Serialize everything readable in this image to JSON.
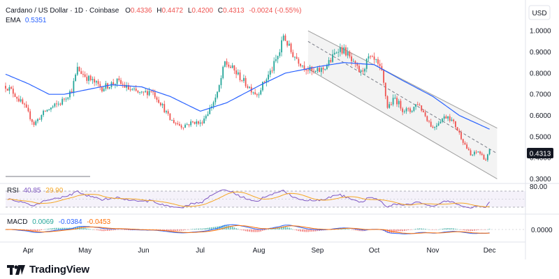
{
  "header": {
    "symbol": "Cardano / US Dollar · 1D · Coinbase",
    "open_label": "O",
    "open": "0.4336",
    "high_label": "H",
    "high": "0.4472",
    "low_label": "L",
    "low": "0.4200",
    "close_label": "C",
    "close": "0.4313",
    "change": "-0.0024 (-0.55%)",
    "ema_label": "EMA",
    "ema_value": "0.5351"
  },
  "currency_button": "USD",
  "last_price_badge": "0.4313",
  "rsi": {
    "label": "RSI",
    "value": "40.85",
    "ma": "29.90",
    "upper_label": "80.00"
  },
  "macd": {
    "label": "MACD",
    "histogram": "0.0069",
    "macd": "-0.0384",
    "signal": "-0.0453",
    "zero_label": "0.0000"
  },
  "colors": {
    "up": "#26a69a",
    "down": "#ef5350",
    "ema": "#2962ff",
    "rsi": "#7e57c2",
    "rsi_ma": "#f5a623",
    "macd_signal": "#ff6d00",
    "channel": "#9e9e9e",
    "badge": "#131722"
  },
  "branding": {
    "logo_icon": "tradingview-logo-icon",
    "name": "TradingView"
  },
  "chart_data": {
    "type": "candlestick",
    "y_axis": {
      "ticks": [
        "1.0000",
        "0.9000",
        "0.8000",
        "0.7000",
        "0.6000",
        "0.5000",
        "0.4000",
        "0.3000"
      ],
      "range": [
        0.285,
        1.06
      ]
    },
    "x_axis": {
      "ticks": [
        "Apr",
        "May",
        "Jun",
        "Jul",
        "Aug",
        "Sep",
        "Oct",
        "Nov",
        "Dec"
      ]
    },
    "price_anchors": [
      {
        "date": "2023-03-20",
        "price": 0.74
      },
      {
        "date": "2023-03-24",
        "price": 0.71
      },
      {
        "date": "2023-03-30",
        "price": 0.64
      },
      {
        "date": "2023-04-04",
        "price": 0.56
      },
      {
        "date": "2023-04-10",
        "price": 0.62
      },
      {
        "date": "2023-04-18",
        "price": 0.66
      },
      {
        "date": "2023-04-24",
        "price": 0.72
      },
      {
        "date": "2023-04-27",
        "price": 0.82
      },
      {
        "date": "2023-05-02",
        "price": 0.78
      },
      {
        "date": "2023-05-10",
        "price": 0.73
      },
      {
        "date": "2023-05-18",
        "price": 0.76
      },
      {
        "date": "2023-05-25",
        "price": 0.72
      },
      {
        "date": "2023-05-31",
        "price": 0.7
      },
      {
        "date": "2023-06-05",
        "price": 0.72
      },
      {
        "date": "2023-06-10",
        "price": 0.66
      },
      {
        "date": "2023-06-15",
        "price": 0.58
      },
      {
        "date": "2023-06-21",
        "price": 0.55
      },
      {
        "date": "2023-06-28",
        "price": 0.57
      },
      {
        "date": "2023-07-01",
        "price": 0.56
      },
      {
        "date": "2023-07-06",
        "price": 0.63
      },
      {
        "date": "2023-07-10",
        "price": 0.7
      },
      {
        "date": "2023-07-14",
        "price": 0.85
      },
      {
        "date": "2023-07-18",
        "price": 0.82
      },
      {
        "date": "2023-07-22",
        "price": 0.78
      },
      {
        "date": "2023-07-26",
        "price": 0.74
      },
      {
        "date": "2023-07-31",
        "price": 0.7
      },
      {
        "date": "2023-08-04",
        "price": 0.76
      },
      {
        "date": "2023-08-08",
        "price": 0.82
      },
      {
        "date": "2023-08-12",
        "price": 0.9
      },
      {
        "date": "2023-08-14",
        "price": 0.98
      },
      {
        "date": "2023-08-18",
        "price": 0.9
      },
      {
        "date": "2023-08-24",
        "price": 0.84
      },
      {
        "date": "2023-08-30",
        "price": 0.8
      },
      {
        "date": "2023-09-04",
        "price": 0.82
      },
      {
        "date": "2023-09-08",
        "price": 0.86
      },
      {
        "date": "2023-09-12",
        "price": 0.92
      },
      {
        "date": "2023-09-16",
        "price": 0.9
      },
      {
        "date": "2023-09-20",
        "price": 0.84
      },
      {
        "date": "2023-09-24",
        "price": 0.8
      },
      {
        "date": "2023-09-28",
        "price": 0.87
      },
      {
        "date": "2023-10-02",
        "price": 0.85
      },
      {
        "date": "2023-10-05",
        "price": 0.8
      },
      {
        "date": "2023-10-08",
        "price": 0.64
      },
      {
        "date": "2023-10-12",
        "price": 0.68
      },
      {
        "date": "2023-10-16",
        "price": 0.63
      },
      {
        "date": "2023-10-20",
        "price": 0.62
      },
      {
        "date": "2023-10-24",
        "price": 0.66
      },
      {
        "date": "2023-10-28",
        "price": 0.6
      },
      {
        "date": "2023-11-01",
        "price": 0.54
      },
      {
        "date": "2023-11-05",
        "price": 0.58
      },
      {
        "date": "2023-11-09",
        "price": 0.6
      },
      {
        "date": "2023-11-13",
        "price": 0.55
      },
      {
        "date": "2023-11-17",
        "price": 0.48
      },
      {
        "date": "2023-11-21",
        "price": 0.41
      },
      {
        "date": "2023-11-25",
        "price": 0.43
      },
      {
        "date": "2023-11-29",
        "price": 0.39
      },
      {
        "date": "2023-12-01",
        "price": 0.431
      }
    ],
    "ema_anchors": [
      {
        "date": "2023-03-20",
        "price": 0.795
      },
      {
        "date": "2023-04-01",
        "price": 0.75
      },
      {
        "date": "2023-04-12",
        "price": 0.7
      },
      {
        "date": "2023-04-20",
        "price": 0.7
      },
      {
        "date": "2023-05-01",
        "price": 0.72
      },
      {
        "date": "2023-05-15",
        "price": 0.745
      },
      {
        "date": "2023-05-31",
        "price": 0.735
      },
      {
        "date": "2023-06-15",
        "price": 0.69
      },
      {
        "date": "2023-07-01",
        "price": 0.62
      },
      {
        "date": "2023-07-15",
        "price": 0.66
      },
      {
        "date": "2023-08-01",
        "price": 0.74
      },
      {
        "date": "2023-08-15",
        "price": 0.8
      },
      {
        "date": "2023-09-01",
        "price": 0.83
      },
      {
        "date": "2023-09-15",
        "price": 0.85
      },
      {
        "date": "2023-10-01",
        "price": 0.84
      },
      {
        "date": "2023-10-15",
        "price": 0.77
      },
      {
        "date": "2023-11-01",
        "price": 0.69
      },
      {
        "date": "2023-11-15",
        "price": 0.6
      },
      {
        "date": "2023-12-01",
        "price": 0.535
      }
    ],
    "channel": {
      "upper": [
        {
          "date": "2023-08-27",
          "price": 1.0
        },
        {
          "date": "2023-12-05",
          "price": 0.54
        }
      ],
      "lower": [
        {
          "date": "2023-08-27",
          "price": 0.82
        },
        {
          "date": "2023-12-05",
          "price": 0.3
        }
      ],
      "midline": [
        {
          "date": "2023-08-27",
          "price": 0.95
        },
        {
          "date": "2023-12-05",
          "price": 0.42
        }
      ]
    },
    "rsi": {
      "upper": 80,
      "lower": 20,
      "current": 40.85,
      "ma": 29.9
    },
    "macd": {
      "histogram": 0.0069,
      "macd": -0.0384,
      "signal": -0.0453
    }
  }
}
